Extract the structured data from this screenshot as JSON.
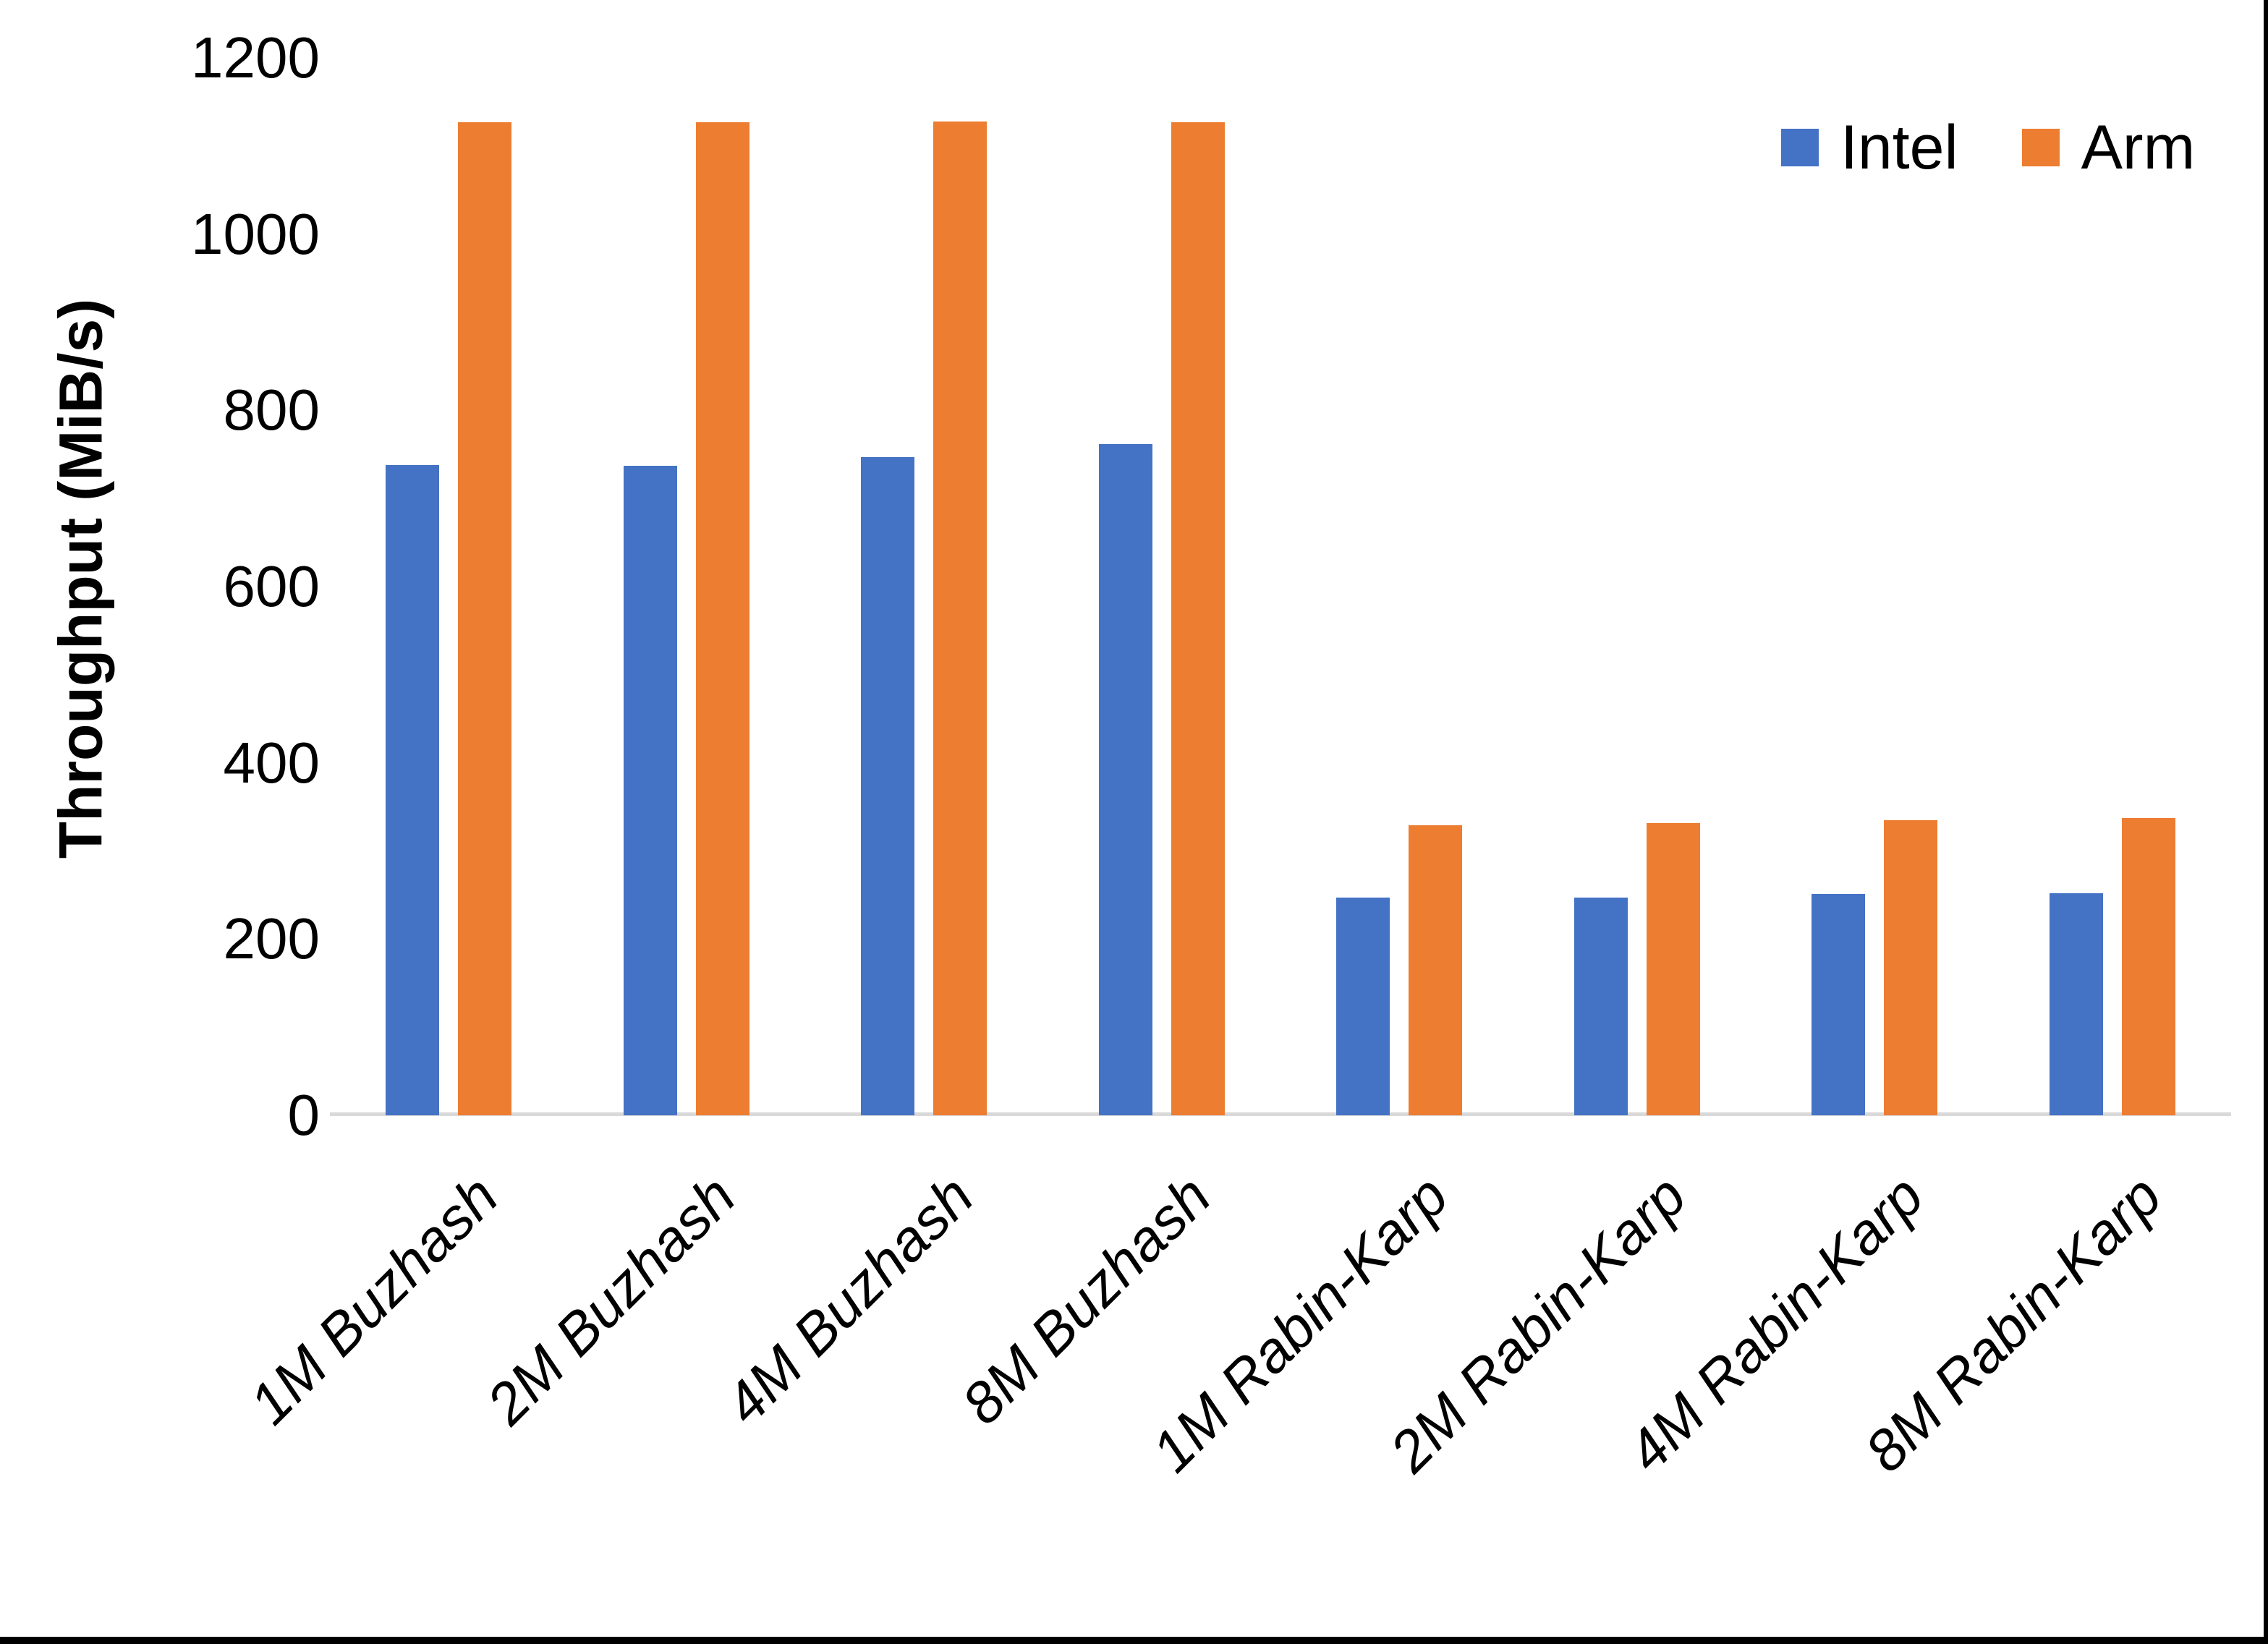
{
  "chart_data": {
    "type": "bar",
    "title": "",
    "xlabel": "",
    "ylabel": "Throughput (MiB/s)",
    "categories": [
      "1M Buzhash",
      "2M Buzhash",
      "4M Buzhash",
      "8M Buzhash",
      "1M Rabin-Karp",
      "2M Rabin-Karp",
      "4M Rabin-Karp",
      "8M Rabin-Karp"
    ],
    "series": [
      {
        "name": "Intel",
        "color": "#4472C4",
        "values": [
          738,
          737,
          747,
          762,
          247,
          247,
          251,
          252
        ]
      },
      {
        "name": "Arm",
        "color": "#ED7D31",
        "values": [
          1127,
          1127,
          1128,
          1127,
          329,
          332,
          335,
          337
        ]
      }
    ],
    "ylim": [
      0,
      1200
    ],
    "yticks": [
      0,
      200,
      400,
      600,
      800,
      1000,
      1200
    ],
    "grid": false,
    "legend_position": "top-right",
    "axis_line_color": "#D9D9D9",
    "text_color": "#000000",
    "background_color": "#FFFFFF",
    "border_color": "#000000"
  }
}
